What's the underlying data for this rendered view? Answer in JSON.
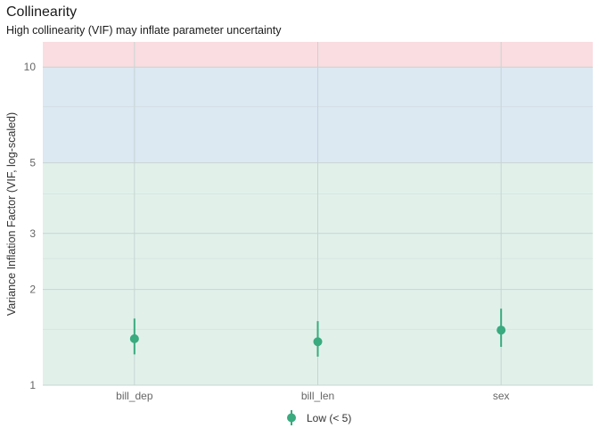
{
  "chart_data": {
    "type": "scatter",
    "title": "Collinearity",
    "subtitle": "High collinearity (VIF) may inflate parameter uncertainty",
    "xlabel": "",
    "ylabel": "Variance Inflation Factor (VIF, log-scaled)",
    "y_scale": "log",
    "ylim": [
      1,
      12
    ],
    "y_ticks": [
      1,
      2,
      3,
      5,
      10
    ],
    "y_tick_labels": [
      "1",
      "2",
      "3",
      "5",
      "10"
    ],
    "grid": true,
    "categories": [
      "bill_dep",
      "bill_len",
      "sex"
    ],
    "points": [
      {
        "term": "bill_dep",
        "vif": 1.4,
        "ci_low": 1.25,
        "ci_high": 1.62,
        "group": "Low (< 5)"
      },
      {
        "term": "bill_len",
        "vif": 1.37,
        "ci_low": 1.23,
        "ci_high": 1.59,
        "group": "Low (< 5)"
      },
      {
        "term": "sex",
        "vif": 1.49,
        "ci_low": 1.32,
        "ci_high": 1.74,
        "group": "Low (< 5)"
      }
    ],
    "bands": [
      {
        "name": "low",
        "from": 1,
        "to": 5,
        "color": "#e1f1ea"
      },
      {
        "name": "moderate",
        "from": 5,
        "to": 10,
        "color": "#dce8f2"
      },
      {
        "name": "high",
        "from": 10,
        "to": 12,
        "color": "#fadde1"
      }
    ],
    "legend": {
      "position": "bottom",
      "entries": [
        {
          "label": "Low (< 5)",
          "color": "#3aaa7f"
        }
      ]
    },
    "point_color": "#3aaa7f"
  }
}
